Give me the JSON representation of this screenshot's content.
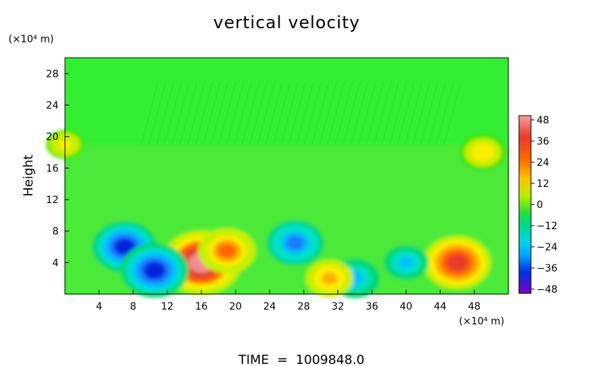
{
  "chart_data": {
    "type": "heatmap",
    "title": "vertical velocity",
    "ylabel": "Height",
    "y_unit": "(×10⁴ m)",
    "x_unit": "(×10⁴ m)",
    "xlim": [
      0,
      52
    ],
    "ylim": [
      0,
      30
    ],
    "x_ticks": [
      "4",
      "8",
      "12",
      "16",
      "20",
      "24",
      "28",
      "32",
      "36",
      "40",
      "44",
      "48"
    ],
    "y_ticks": [
      "4",
      "8",
      "12",
      "16",
      "20",
      "24",
      "28"
    ],
    "colorbar": {
      "ticks": [
        "48",
        "36",
        "24",
        "12",
        "0",
        "−12",
        "−24",
        "−36",
        "−48"
      ],
      "range": [
        -48,
        48
      ],
      "colors": [
        "#ef8f8f",
        "#e83a2a",
        "#ff6600",
        "#ffaa00",
        "#ffee00",
        "#c8f000",
        "#38e000",
        "#00d870",
        "#00e0c8",
        "#00bfff",
        "#1c7bff",
        "#0022dd",
        "#7a00c8"
      ]
    },
    "background_color": "#33ee33",
    "features": [
      {
        "x": 16,
        "y": 4,
        "value": 48
      },
      {
        "x": 19,
        "y": 5.5,
        "value": 30
      },
      {
        "x": 46,
        "y": 4,
        "value": 38
      },
      {
        "x": 7,
        "y": 6,
        "value": -36
      },
      {
        "x": 10.5,
        "y": 3,
        "value": -38
      },
      {
        "x": 27,
        "y": 6.5,
        "value": -30
      },
      {
        "x": 34,
        "y": 2,
        "value": -24
      },
      {
        "x": 40,
        "y": 4,
        "value": -20
      },
      {
        "x": 31,
        "y": 2,
        "value": 22
      },
      {
        "x": 49,
        "y": 18,
        "value": 20
      },
      {
        "x": 0,
        "y": 19,
        "value": 14
      }
    ],
    "footer": "TIME  =  1009848.0"
  }
}
